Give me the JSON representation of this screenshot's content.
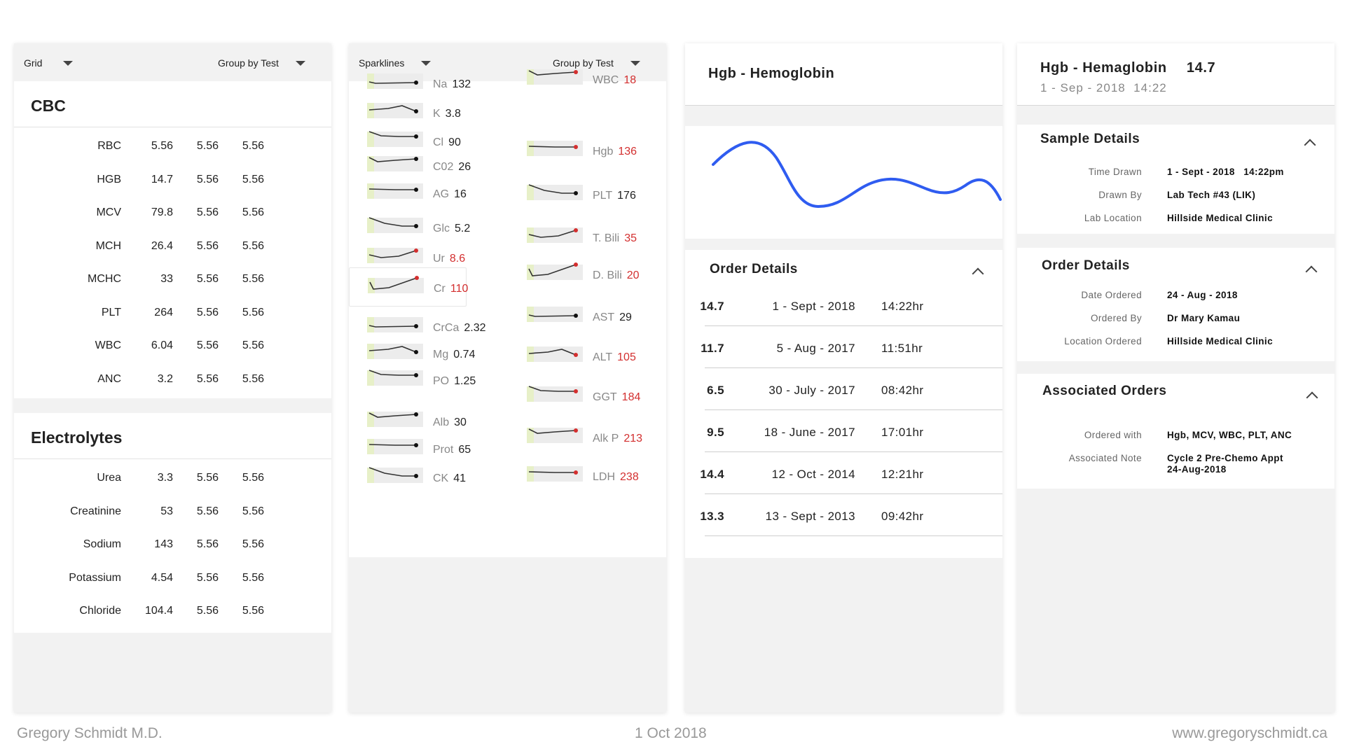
{
  "grid_panel": {
    "view_select": "Grid",
    "group_select": "Group by Test",
    "sections": [
      {
        "title": "CBC",
        "rows": [
          {
            "label": "RBC",
            "v1": "5.56",
            "v2": "5.56",
            "v3": "5.56"
          },
          {
            "label": "HGB",
            "v1": "14.7",
            "v2": "5.56",
            "v3": "5.56"
          },
          {
            "label": "MCV",
            "v1": "79.8",
            "v2": "5.56",
            "v3": "5.56"
          },
          {
            "label": "MCH",
            "v1": "26.4",
            "v2": "5.56",
            "v3": "5.56"
          },
          {
            "label": "MCHC",
            "v1": "33",
            "v2": "5.56",
            "v3": "5.56"
          },
          {
            "label": "PLT",
            "v1": "264",
            "v2": "5.56",
            "v3": "5.56"
          },
          {
            "label": "WBC",
            "v1": "6.04",
            "v2": "5.56",
            "v3": "5.56"
          },
          {
            "label": "ANC",
            "v1": "3.2",
            "v2": "5.56",
            "v3": "5.56"
          }
        ]
      },
      {
        "title": "Electrolytes",
        "rows": [
          {
            "label": "Urea",
            "v1": "3.3",
            "v2": "5.56",
            "v3": "5.56"
          },
          {
            "label": "Creatinine",
            "v1": "53",
            "v2": "5.56",
            "v3": "5.56"
          },
          {
            "label": "Sodium",
            "v1": "143",
            "v2": "5.56",
            "v3": "5.56"
          },
          {
            "label": "Potassium",
            "v1": "4.54",
            "v2": "5.56",
            "v3": "5.56"
          },
          {
            "label": "Chloride",
            "v1": "104.4",
            "v2": "5.56",
            "v3": "5.56"
          }
        ]
      }
    ]
  },
  "spark_panel": {
    "view_select": "Sparklines",
    "group_select": "Group by Test",
    "left": [
      {
        "name": "Na",
        "value": "132",
        "abnormal": false
      },
      {
        "name": "K",
        "value": "3.8",
        "abnormal": false
      },
      {
        "name": "Cl",
        "value": "90",
        "abnormal": false
      },
      {
        "name": "C02",
        "value": "26",
        "abnormal": false
      },
      {
        "name": "AG",
        "value": "16",
        "abnormal": false
      },
      {
        "name": "Glc",
        "value": "5.2",
        "abnormal": false
      },
      {
        "name": "Ur",
        "value": "8.6",
        "abnormal": true
      },
      {
        "name": "Cr",
        "value": "110",
        "abnormal": true
      },
      {
        "name": "CrCa",
        "value": "2.32",
        "abnormal": false
      },
      {
        "name": "Mg",
        "value": "0.74",
        "abnormal": false
      },
      {
        "name": "PO",
        "value": "1.25",
        "abnormal": false
      },
      {
        "name": "Alb",
        "value": "30",
        "abnormal": false
      },
      {
        "name": "Prot",
        "value": "65",
        "abnormal": false
      },
      {
        "name": "CK",
        "value": "41",
        "abnormal": false
      }
    ],
    "right": [
      {
        "name": "WBC",
        "value": "18",
        "abnormal": true
      },
      {
        "name": "Hgb",
        "value": "136",
        "abnormal": true
      },
      {
        "name": "PLT",
        "value": "176",
        "abnormal": false
      },
      {
        "name": "T. Bili",
        "value": "35",
        "abnormal": true
      },
      {
        "name": "D. Bili",
        "value": "20",
        "abnormal": true
      },
      {
        "name": "AST",
        "value": "29",
        "abnormal": false
      },
      {
        "name": "ALT",
        "value": "105",
        "abnormal": true
      },
      {
        "name": "GGT",
        "value": "184",
        "abnormal": true
      },
      {
        "name": "Alk P",
        "value": "213",
        "abnormal": true
      },
      {
        "name": "LDH",
        "value": "238",
        "abnormal": true
      }
    ]
  },
  "trend_panel": {
    "title": "Hgb - Hemoglobin",
    "order_details_title": "Order Details",
    "orders": [
      {
        "value": "14.7",
        "date": "1 - Sept - 2018",
        "time": "14:22hr"
      },
      {
        "value": "11.7",
        "date": "5 - Aug - 2017",
        "time": "11:51hr"
      },
      {
        "value": "6.5",
        "date": "30 - July - 2017",
        "time": "08:42hr"
      },
      {
        "value": "9.5",
        "date": "18 - June - 2017",
        "time": "17:01hr"
      },
      {
        "value": "14.4",
        "date": "12 - Oct - 2014",
        "time": "12:21hr"
      },
      {
        "value": "13.3",
        "date": "13 - Sept - 2013",
        "time": "09:42hr"
      }
    ],
    "line_color": "#2f5cf0"
  },
  "detail_panel": {
    "title": "Hgb - Hemaglobin",
    "value": "14.7",
    "subtitle": "1 - Sep - 2018  14:22",
    "sample_details": {
      "title": "Sample Details",
      "items": [
        {
          "k": "Time Drawn",
          "v": "1 - Sept - 2018   14:22pm"
        },
        {
          "k": "Drawn By",
          "v": "Lab Tech #43 (LIK)"
        },
        {
          "k": "Lab Location",
          "v": "Hillside Medical Clinic"
        }
      ]
    },
    "order_details": {
      "title": "Order Details",
      "items": [
        {
          "k": "Date Ordered",
          "v": "24 - Aug - 2018"
        },
        {
          "k": "Ordered By",
          "v": "Dr Mary Kamau"
        },
        {
          "k": "Location Ordered",
          "v": "Hillside Medical Clinic"
        }
      ]
    },
    "associated_orders": {
      "title": "Associated Orders",
      "items": [
        {
          "k": "Ordered with",
          "v": "Hgb, MCV, WBC, PLT, ANC"
        },
        {
          "k": "Associated Note",
          "v": "Cycle 2 Pre-Chemo Appt\n24-Aug-2018"
        }
      ]
    }
  },
  "footer": {
    "author": "Gregory Schmidt M.D.",
    "date": "1 Oct 2018",
    "website": "www.gregoryschmidt.ca"
  },
  "colors": {
    "abnormal": "#d32f2f",
    "accent_line": "#2f5cf0"
  }
}
